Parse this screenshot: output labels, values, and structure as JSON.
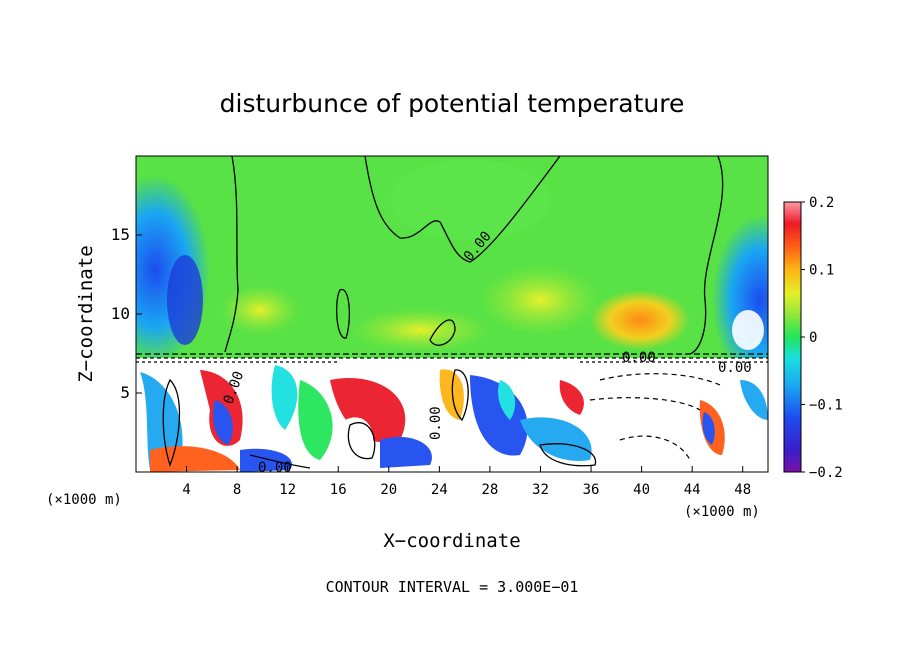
{
  "chart_data": {
    "type": "heatmap",
    "title": "disturbunce of potential temperature",
    "xlabel": "X−coordinate",
    "ylabel": "Z−coordinate",
    "x_units_left": "(×1000 m)",
    "x_units_right": "(×1000 m)",
    "xlim": [
      0,
      50
    ],
    "ylim": [
      0,
      20
    ],
    "x_ticks": [
      4,
      8,
      12,
      16,
      20,
      24,
      28,
      32,
      36,
      40,
      44,
      48
    ],
    "y_ticks": [
      5,
      10,
      15
    ],
    "colorbar": {
      "range": [
        -0.2,
        0.2
      ],
      "ticks": [
        "0.2",
        "0.1",
        "0",
        "−0.1",
        "−0.2"
      ]
    },
    "contour_labels": [
      "0.00",
      "0.00",
      "0.00",
      "0.00",
      "0.00",
      "0.00"
    ],
    "contour_interval_text": "CONTOUR INTERVAL = 3.000E−01"
  }
}
